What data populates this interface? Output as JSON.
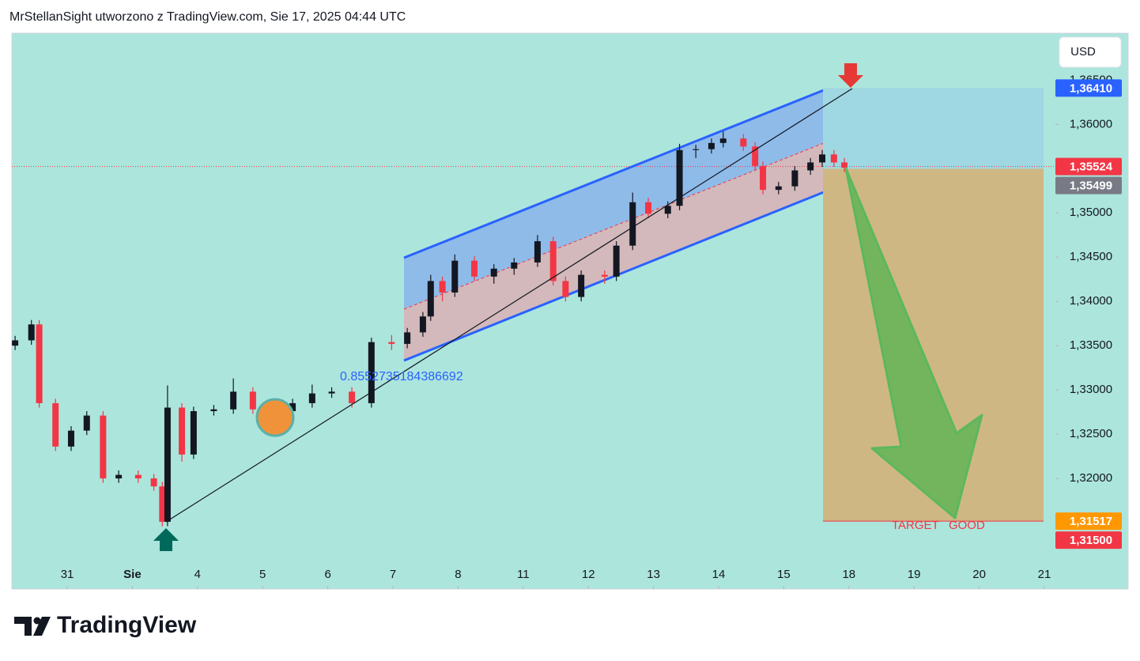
{
  "header": "MrStellanSight utworzono z TradingView.com, Sie 17, 2025 04:44 UTC",
  "footer_logo": "TradingView",
  "chart_data": {
    "type": "candlestick",
    "currency": "USD",
    "x": [
      -0.8,
      -0.55,
      -0.43,
      -0.18,
      0.06,
      0.3,
      0.55,
      0.79,
      1.09,
      1.33,
      1.46,
      1.54,
      1.76,
      1.94,
      2.25,
      2.55,
      2.85,
      3.16,
      3.46,
      3.76,
      4.06,
      4.37,
      4.67,
      4.98,
      5.22,
      5.46,
      5.58,
      5.76,
      5.95,
      6.25,
      6.55,
      6.86,
      7.22,
      7.46,
      7.65,
      7.89,
      8.25,
      8.43,
      8.68,
      8.92,
      9.22,
      9.4,
      9.65,
      9.89,
      10.07,
      10.38,
      10.56,
      10.68,
      10.92,
      11.17,
      11.41,
      11.59,
      11.77,
      11.93
    ],
    "open": [
      1.335,
      1.3356,
      1.3374,
      1.3285,
      1.3236,
      1.3254,
      1.3271,
      1.32,
      1.3204,
      1.32,
      1.3191,
      1.3151,
      1.328,
      1.3227,
      1.3276,
      1.3278,
      1.3298,
      1.3278,
      1.3276,
      1.3285,
      1.3296,
      1.3298,
      1.3285,
      1.3354,
      1.3352,
      1.3365,
      1.3383,
      1.3423,
      1.341,
      1.3446,
      1.3428,
      1.3437,
      1.3444,
      1.3468,
      1.3423,
      1.3405,
      1.343,
      1.3428,
      1.3463,
      1.3512,
      1.3499,
      1.3508,
      1.3571,
      1.3572,
      1.3579,
      1.3584,
      1.3575,
      1.3553,
      1.3526,
      1.353,
      1.3548,
      1.3557,
      1.3566,
      1.3557
    ],
    "high": [
      1.3361,
      1.3379,
      1.3379,
      1.329,
      1.3259,
      1.3276,
      1.3276,
      1.3209,
      1.3209,
      1.3205,
      1.3196,
      1.3305,
      1.3285,
      1.3281,
      1.3283,
      1.3313,
      1.3303,
      1.3283,
      1.329,
      1.3306,
      1.3303,
      1.3303,
      1.3359,
      1.3362,
      1.337,
      1.3388,
      1.343,
      1.3428,
      1.3453,
      1.3451,
      1.3442,
      1.3449,
      1.3475,
      1.3473,
      1.3428,
      1.3435,
      1.3435,
      1.3468,
      1.3523,
      1.3517,
      1.3513,
      1.3578,
      1.3577,
      1.3584,
      1.3592,
      1.3589,
      1.358,
      1.3558,
      1.3535,
      1.3553,
      1.3562,
      1.3571,
      1.3571,
      1.3562
    ],
    "low": [
      1.3345,
      1.3351,
      1.328,
      1.3231,
      1.3231,
      1.3249,
      1.3195,
      1.3195,
      1.3195,
      1.3186,
      1.3146,
      1.3146,
      1.3219,
      1.3222,
      1.3271,
      1.3273,
      1.3273,
      1.3268,
      1.3271,
      1.328,
      1.3291,
      1.328,
      1.328,
      1.3345,
      1.3347,
      1.336,
      1.3378,
      1.34,
      1.3405,
      1.3423,
      1.342,
      1.343,
      1.3439,
      1.3418,
      1.34,
      1.34,
      1.342,
      1.3423,
      1.3458,
      1.3494,
      1.3494,
      1.3503,
      1.3562,
      1.3567,
      1.3574,
      1.357,
      1.3548,
      1.3521,
      1.3521,
      1.3525,
      1.3543,
      1.3552,
      1.3552,
      1.3546
    ],
    "close": [
      1.3356,
      1.3374,
      1.3285,
      1.3236,
      1.3254,
      1.3271,
      1.32,
      1.3204,
      1.32,
      1.3191,
      1.3151,
      1.328,
      1.3227,
      1.3276,
      1.3278,
      1.3298,
      1.3278,
      1.3276,
      1.3285,
      1.3296,
      1.3298,
      1.3285,
      1.3354,
      1.3352,
      1.3365,
      1.3383,
      1.3423,
      1.341,
      1.3446,
      1.3428,
      1.3437,
      1.3444,
      1.3468,
      1.3423,
      1.3405,
      1.343,
      1.3428,
      1.3463,
      1.3512,
      1.3499,
      1.3508,
      1.3571,
      1.3572,
      1.3579,
      1.3584,
      1.3575,
      1.3553,
      1.3526,
      1.353,
      1.3548,
      1.3557,
      1.3566,
      1.3557,
      1.3551
    ],
    "up_color": "#131722",
    "down_color": "#f23645",
    "xlim": [
      -0.85,
      15.17
    ],
    "xticks": [
      {
        "value": 0,
        "label": "31"
      },
      {
        "value": 1,
        "label": "Sie"
      },
      {
        "value": 2,
        "label": "4"
      },
      {
        "value": 3,
        "label": "5"
      },
      {
        "value": 4,
        "label": "6"
      },
      {
        "value": 5,
        "label": "7"
      },
      {
        "value": 6,
        "label": "8"
      },
      {
        "value": 7,
        "label": "11"
      },
      {
        "value": 8,
        "label": "12"
      },
      {
        "value": 9,
        "label": "13"
      },
      {
        "value": 10,
        "label": "14"
      },
      {
        "value": 11,
        "label": "15"
      },
      {
        "value": 12,
        "label": "18"
      },
      {
        "value": 13,
        "label": "19"
      },
      {
        "value": 14,
        "label": "20"
      },
      {
        "value": 15,
        "label": "21"
      }
    ],
    "ylim": [
      1.3075,
      1.3703
    ],
    "yticks": [
      {
        "value": 1.315,
        "label": "1,31500"
      },
      {
        "value": 1.32,
        "label": "1,32000"
      },
      {
        "value": 1.325,
        "label": "1,32500"
      },
      {
        "value": 1.33,
        "label": "1,33000"
      },
      {
        "value": 1.335,
        "label": "1,33500"
      },
      {
        "value": 1.34,
        "label": "1,34000"
      },
      {
        "value": 1.345,
        "label": "1,34500"
      },
      {
        "value": 1.35,
        "label": "1,35000"
      },
      {
        "value": 1.355,
        "label": "1,35500"
      },
      {
        "value": 1.36,
        "label": "1,36000"
      },
      {
        "value": 1.365,
        "label": "1,36500"
      }
    ],
    "price_labels": [
      {
        "value": 1.3641,
        "label": "1,36410",
        "color": "#2962ff"
      },
      {
        "value": 1.35524,
        "label": "1,35524",
        "color": "#f23645"
      },
      {
        "value": 1.35499,
        "label": "1,35499",
        "color": "#787b86"
      },
      {
        "value": 1.31517,
        "label": "1,31517",
        "color": "#ff9800"
      },
      {
        "value": 1.315,
        "label": "1,31500",
        "color": "#f23645"
      }
    ],
    "annotations": [
      "0.8552735184386692",
      "TARGET   GOOD"
    ]
  }
}
